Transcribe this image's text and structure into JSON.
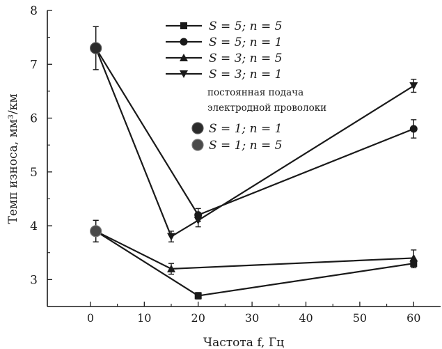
{
  "chart_data": {
    "type": "line",
    "xlabel": "Частота f, Гц",
    "ylabel": "Темп износа, мм³/км",
    "xlim": [
      -8,
      65
    ],
    "ylim": [
      2.5,
      8
    ],
    "x_ticks": [
      0,
      10,
      20,
      30,
      40,
      50,
      60
    ],
    "y_ticks": [
      3,
      4,
      5,
      6,
      7,
      8
    ],
    "grid": false,
    "legend_position": "top-right",
    "line_color": "#1a1a1a",
    "series": [
      {
        "name": "S = 5; n = 5",
        "marker": "square",
        "x": [
          1,
          20,
          60
        ],
        "y": [
          3.9,
          2.7,
          3.3
        ],
        "err": [
          0.2,
          0.06,
          0.08
        ]
      },
      {
        "name": "S = 5; n = 1",
        "marker": "circle",
        "x": [
          1,
          20,
          60
        ],
        "y": [
          7.3,
          4.2,
          5.8
        ],
        "err": [
          0.4,
          0.12,
          0.17
        ]
      },
      {
        "name": "S = 3; n = 5",
        "marker": "triangle-up",
        "x": [
          1,
          15,
          60
        ],
        "y": [
          3.9,
          3.2,
          3.4
        ],
        "err": [
          0.2,
          0.1,
          0.15
        ]
      },
      {
        "name": "S = 3; n = 1",
        "marker": "triangle-down",
        "x": [
          1,
          15,
          20,
          60
        ],
        "y": [
          7.3,
          3.8,
          4.1,
          6.6
        ],
        "err": [
          0.4,
          0.1,
          0.12,
          0.12
        ]
      }
    ],
    "annotation": [
      "постоянная подача",
      "электродной проволоки"
    ],
    "constant_feed_points": [
      {
        "name": "S = 1; n = 1",
        "x": 1,
        "y": 7.3,
        "marker": "circle-large-dark"
      },
      {
        "name": "S = 1; n = 5",
        "x": 1,
        "y": 3.9,
        "marker": "circle-large"
      }
    ]
  }
}
